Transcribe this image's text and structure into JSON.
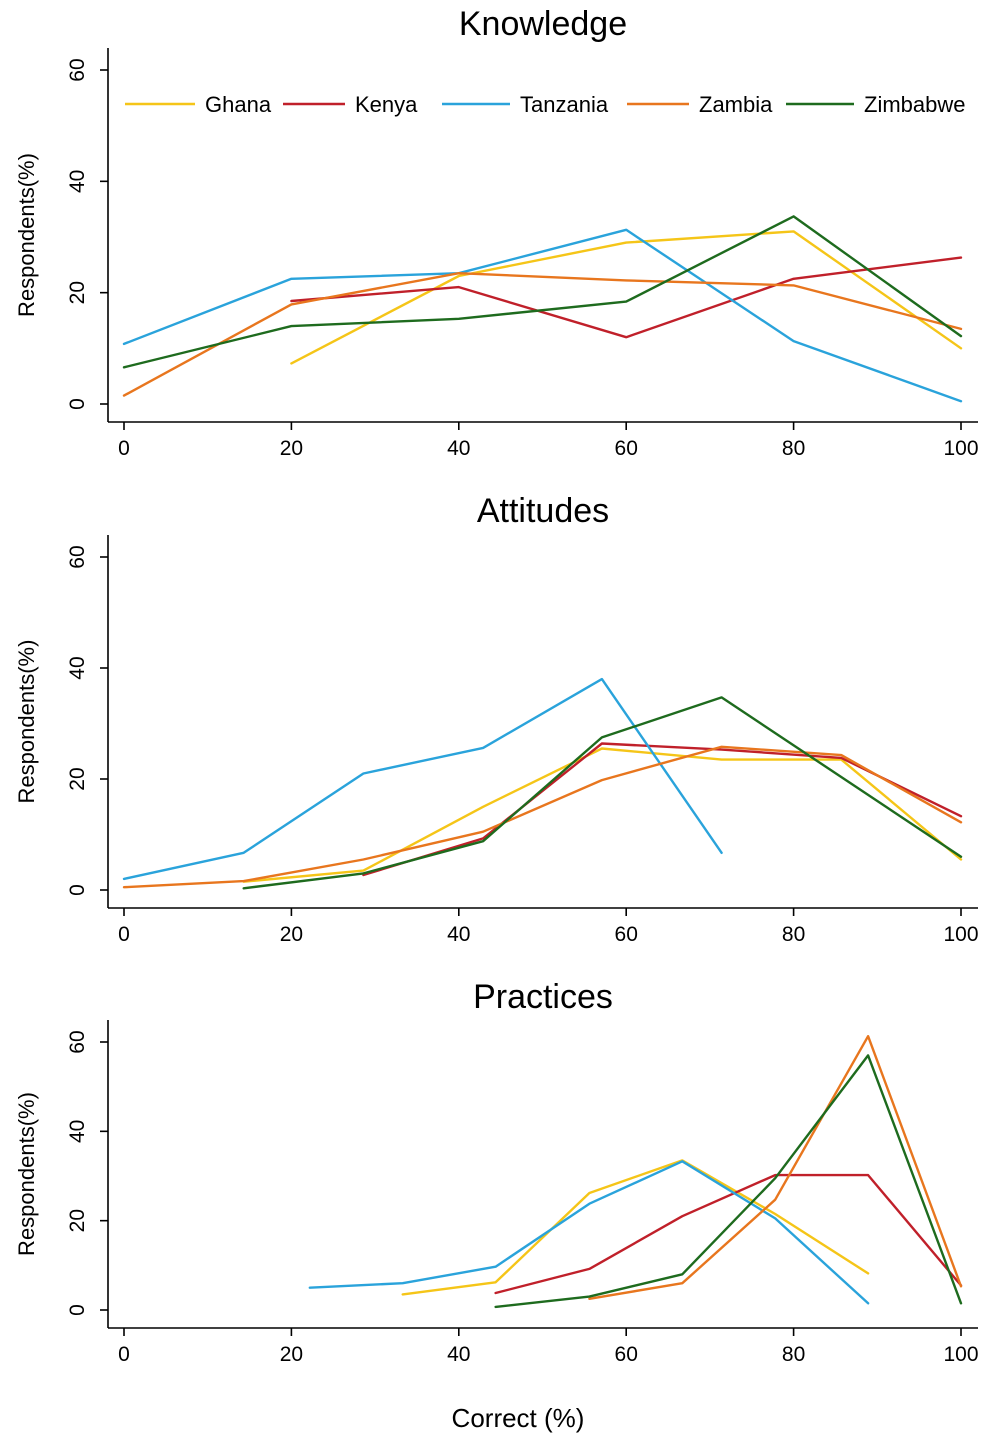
{
  "figure": {
    "xlabel": "Correct (%)",
    "legend_position": "top"
  },
  "colors": {
    "Ghana": "#F5C518",
    "Kenya": "#C0202A",
    "Tanzania": "#2AA3DB",
    "Zambia": "#E8761E",
    "Zimbabwe": "#1E6B1E"
  },
  "legend": [
    "Ghana",
    "Kenya",
    "Tanzania",
    "Zambia",
    "Zimbabwe"
  ],
  "chart_data": [
    {
      "type": "line",
      "title": "Knowledge",
      "xlabel": "",
      "ylabel": "Respondents(%)",
      "xlim": [
        0,
        100
      ],
      "ylim": [
        0,
        60
      ],
      "xticks": [
        0,
        20,
        40,
        60,
        80,
        100
      ],
      "yticks": [
        0,
        20,
        40,
        60
      ],
      "grid": false,
      "show_legend": true,
      "series": [
        {
          "name": "Ghana",
          "x": [
            20,
            40,
            60,
            80,
            100
          ],
          "y": [
            7.3,
            23.0,
            29.0,
            31.0,
            10.0
          ]
        },
        {
          "name": "Kenya",
          "x": [
            20,
            40,
            60,
            80,
            100
          ],
          "y": [
            18.5,
            21.0,
            12.0,
            22.5,
            26.3
          ]
        },
        {
          "name": "Tanzania",
          "x": [
            0,
            20,
            40,
            60,
            80,
            100
          ],
          "y": [
            10.8,
            22.5,
            23.5,
            31.3,
            11.3,
            0.5
          ]
        },
        {
          "name": "Zambia",
          "x": [
            0,
            20,
            40,
            60,
            80,
            100
          ],
          "y": [
            1.5,
            17.9,
            23.5,
            22.2,
            21.3,
            13.5
          ]
        },
        {
          "name": "Zimbabwe",
          "x": [
            0,
            20,
            40,
            60,
            80,
            100
          ],
          "y": [
            6.6,
            14.0,
            15.3,
            18.4,
            33.7,
            12.2
          ]
        }
      ]
    },
    {
      "type": "line",
      "title": "Attitudes",
      "xlabel": "",
      "ylabel": "Respondents(%)",
      "xlim": [
        0,
        100
      ],
      "ylim": [
        0,
        60
      ],
      "xticks": [
        0,
        20,
        40,
        60,
        80,
        100
      ],
      "yticks": [
        0,
        20,
        40,
        60
      ],
      "grid": false,
      "show_legend": false,
      "series": [
        {
          "name": "Ghana",
          "x": [
            14.3,
            28.6,
            42.9,
            57.1,
            71.4,
            85.7,
            100
          ],
          "y": [
            1.5,
            3.5,
            15.0,
            25.5,
            23.5,
            23.5,
            5.5
          ]
        },
        {
          "name": "Kenya",
          "x": [
            28.6,
            42.9,
            57.1,
            71.4,
            85.7,
            100
          ],
          "y": [
            2.7,
            9.3,
            26.4,
            25.3,
            23.8,
            13.3
          ]
        },
        {
          "name": "Tanzania",
          "x": [
            0,
            14.3,
            28.6,
            42.9,
            57.1,
            71.4
          ],
          "y": [
            2.0,
            6.7,
            21.0,
            25.6,
            38.0,
            6.7
          ]
        },
        {
          "name": "Zambia",
          "x": [
            0,
            14.3,
            28.6,
            42.9,
            57.1,
            71.4,
            85.7,
            100
          ],
          "y": [
            0.5,
            1.6,
            5.5,
            10.5,
            19.8,
            25.8,
            24.3,
            12.2
          ]
        },
        {
          "name": "Zimbabwe",
          "x": [
            14.3,
            28.6,
            42.9,
            57.1,
            71.4,
            100
          ],
          "y": [
            0.3,
            3.0,
            8.8,
            27.5,
            34.7,
            6.0
          ]
        }
      ]
    },
    {
      "type": "line",
      "title": "Practices",
      "xlabel": "Correct (%)",
      "ylabel": "Respondents(%)",
      "xlim": [
        0,
        100
      ],
      "ylim": [
        0,
        60
      ],
      "xticks": [
        0,
        20,
        40,
        60,
        80,
        100
      ],
      "yticks": [
        0,
        20,
        40,
        60
      ],
      "grid": false,
      "show_legend": false,
      "series": [
        {
          "name": "Ghana",
          "x": [
            33.3,
            44.4,
            55.6,
            66.7,
            77.8,
            88.9
          ],
          "y": [
            3.5,
            6.2,
            26.2,
            33.5,
            21.5,
            8.2
          ]
        },
        {
          "name": "Kenya",
          "x": [
            44.4,
            55.6,
            66.7,
            77.8,
            88.9,
            100
          ],
          "y": [
            3.8,
            9.2,
            21.0,
            30.2,
            30.2,
            5.5
          ]
        },
        {
          "name": "Tanzania",
          "x": [
            22.2,
            33.3,
            44.4,
            55.6,
            66.7,
            77.8,
            88.9
          ],
          "y": [
            5.0,
            6.0,
            9.7,
            23.8,
            33.3,
            20.5,
            1.5
          ]
        },
        {
          "name": "Zambia",
          "x": [
            55.6,
            66.7,
            77.8,
            88.9,
            100
          ],
          "y": [
            2.5,
            6.0,
            24.7,
            61.3,
            5.3
          ]
        },
        {
          "name": "Zimbabwe",
          "x": [
            44.4,
            55.6,
            66.7,
            77.8,
            88.9,
            100
          ],
          "y": [
            0.7,
            3.0,
            8.0,
            29.5,
            57.0,
            1.5
          ]
        }
      ]
    }
  ]
}
